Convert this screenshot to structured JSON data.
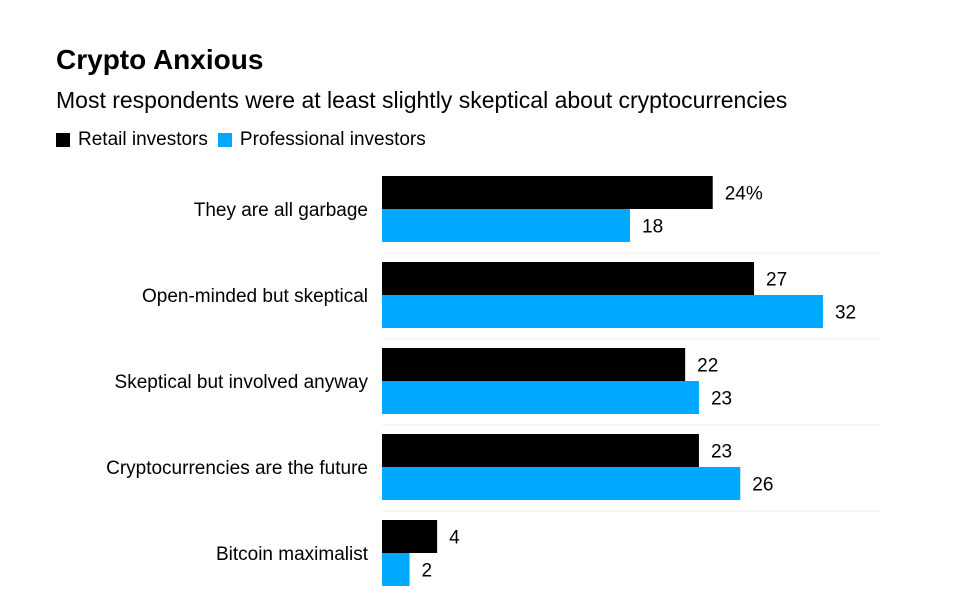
{
  "chart_data": {
    "type": "bar",
    "orientation": "horizontal",
    "title": "Crypto Anxious",
    "subtitle": "Most respondents were at least slightly skeptical about cryptocurrencies",
    "categories": [
      "They are all garbage",
      "Open-minded but skeptical",
      "Skeptical but involved anyway",
      "Cryptocurrencies are the future",
      "Bitcoin maximalist"
    ],
    "series": [
      {
        "name": "Retail investors",
        "color": "#000000",
        "values": [
          24,
          27,
          22,
          23,
          4
        ]
      },
      {
        "name": "Professional investors",
        "color": "#00a8ff",
        "values": [
          18,
          32,
          23,
          26,
          2
        ]
      }
    ],
    "unit_suffix_first_label": "%",
    "xlim": [
      0,
      35
    ],
    "grid": false,
    "legend": "top-left"
  }
}
